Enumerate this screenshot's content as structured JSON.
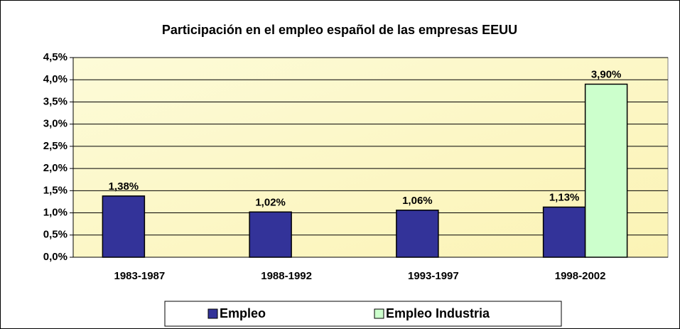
{
  "chart_data": {
    "type": "bar",
    "title": "Participación en el empleo español de las empresas EEUU",
    "categories": [
      "1983-1987",
      "1988-1992",
      "1993-1997",
      "1998-2002"
    ],
    "series": [
      {
        "name": "Empleo",
        "color": "#333399",
        "values": [
          1.38,
          1.02,
          1.06,
          1.13
        ],
        "value_labels": [
          "1,38%",
          "1,02%",
          "1,06%",
          "1,13%"
        ]
      },
      {
        "name": "Empleo Industria",
        "color": "#ccffcc",
        "values": [
          null,
          null,
          null,
          3.9
        ],
        "value_labels": [
          null,
          null,
          null,
          "3,90%"
        ]
      }
    ],
    "ylim": [
      0,
      4.5
    ],
    "yticks": [
      {
        "value": 0,
        "label": "0,0%"
      },
      {
        "value": 0.5,
        "label": "0,5%"
      },
      {
        "value": 1,
        "label": "1,0%"
      },
      {
        "value": 1.5,
        "label": "1,5%"
      },
      {
        "value": 2,
        "label": "2,0%"
      },
      {
        "value": 2.5,
        "label": "2,5%"
      },
      {
        "value": 3,
        "label": "3,0%"
      },
      {
        "value": 3.5,
        "label": "3,5%"
      },
      {
        "value": 4,
        "label": "4,0%"
      },
      {
        "value": 4.5,
        "label": "4,5%"
      }
    ],
    "grid": true,
    "legend": "bottom"
  }
}
